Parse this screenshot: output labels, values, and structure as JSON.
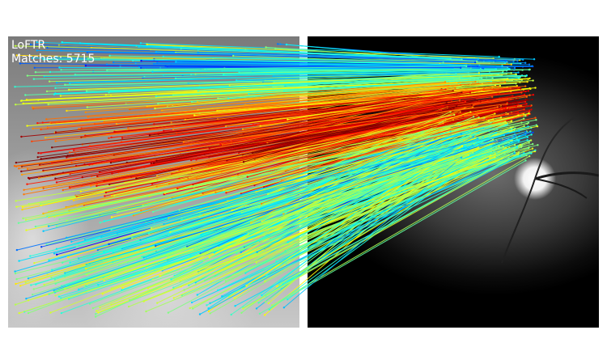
{
  "figure": {
    "method": "LoFTR",
    "matches_text": "Matches: 5715"
  },
  "colormap": "jet",
  "colors": {
    "background": "#ffffff",
    "label_text": "#ffffff"
  }
}
